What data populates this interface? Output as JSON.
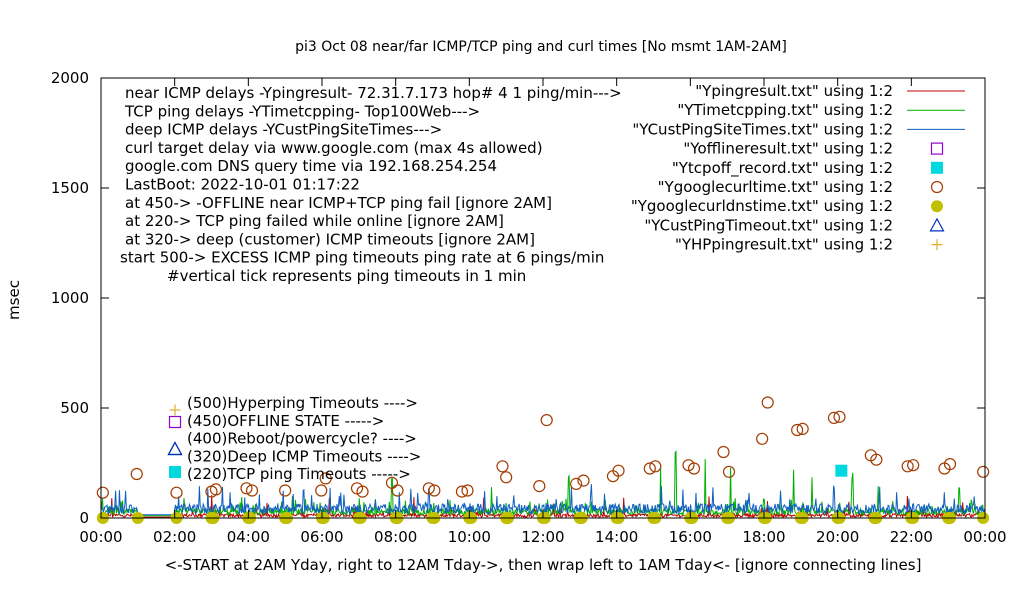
{
  "chart_data": {
    "type": "line",
    "title": "pi3 Oct 08  near/far ICMP/TCP ping and curl times [No msmt 1AM-2AM]",
    "xlabel": "<-START at 2AM Yday, right to 12AM Tday->, then wrap left to 1AM Tday<- [ignore connecting lines]",
    "ylabel": "msec",
    "xlim": [
      0,
      24
    ],
    "ylim": [
      0,
      2000
    ],
    "x_ticks": [
      0,
      2,
      4,
      6,
      8,
      10,
      12,
      14,
      16,
      18,
      20,
      22,
      24
    ],
    "x_tick_labels": [
      "00:00",
      "02:00",
      "04:00",
      "06:00",
      "08:00",
      "10:00",
      "12:00",
      "14:00",
      "16:00",
      "18:00",
      "20:00",
      "22:00",
      "00:00"
    ],
    "y_ticks": [
      0,
      500,
      1000,
      1500,
      2000
    ],
    "y_tick_labels": [
      "0",
      "500",
      "1000",
      "1500",
      "2000"
    ],
    "grid": false,
    "legend_position": "top-right",
    "annotations_top_left": [
      "near ICMP delays -Ypingresult- 72.31.7.173 hop# 4 1 ping/min--->",
      "TCP ping delays -YTimetcpping- Top100Web--->",
      "deep ICMP delays -YCustPingSiteTimes--->",
      "curl target delay via www.google.com (max 4s allowed)",
      "google.com DNS query time via 192.168.254.254",
      "LastBoot: 2022-10-01 01:17:22",
      "at 450-> -OFFLINE near ICMP+TCP ping fail [ignore 2AM]",
      "at 220-> TCP ping failed while online [ignore 2AM]",
      "at 320-> deep (customer) ICMP timeouts [ignore 2AM]",
      "start 500-> EXCESS ICMP ping timeouts ping rate at 6 pings/min",
      "#vertical tick represents ping timeouts in 1 min"
    ],
    "annotations_key": [
      "(500)Hyperping Timeouts ---->",
      "(450)OFFLINE STATE ----->",
      "(400)Reboot/powercycle? ---->",
      "(320)Deep ICMP Timeouts ---->",
      "(220)TCP ping Timeouts ----->"
    ],
    "series": [
      {
        "name": "\"Ypingresult.txt\" using 1:2",
        "style": "line",
        "color": "#c00000",
        "baseline": 12,
        "noise": 10,
        "spikes": [
          [
            0.3,
            90
          ],
          [
            1.2,
            60
          ],
          [
            3.0,
            110
          ],
          [
            4.5,
            85
          ],
          [
            6.2,
            95
          ],
          [
            8.5,
            100
          ],
          [
            10.4,
            90
          ],
          [
            12.3,
            75
          ],
          [
            14.2,
            95
          ],
          [
            16.5,
            110
          ],
          [
            18.1,
            80
          ],
          [
            20.3,
            90
          ],
          [
            21.9,
            105
          ],
          [
            23.4,
            80
          ]
        ]
      },
      {
        "name": "\"YTimetcpping.txt\" using 1:2",
        "style": "line",
        "color": "#00b000",
        "baseline": 28,
        "noise": 18,
        "spikes": [
          [
            5.2,
            120
          ],
          [
            7.9,
            190
          ],
          [
            10.6,
            140
          ],
          [
            12.7,
            200
          ],
          [
            15.2,
            240
          ],
          [
            15.6,
            310
          ],
          [
            16.4,
            290
          ],
          [
            17.1,
            230
          ],
          [
            18.8,
            250
          ],
          [
            19.3,
            200
          ],
          [
            20.4,
            200
          ],
          [
            21.1,
            180
          ],
          [
            23.3,
            140
          ]
        ]
      },
      {
        "name": "\"YCustPingSiteTimes.txt\" using 1:2",
        "style": "line",
        "color": "#1060c0",
        "baseline": 42,
        "noise": 28,
        "spikes": [
          [
            0.4,
            130
          ],
          [
            1.6,
            120
          ],
          [
            3.3,
            140
          ],
          [
            5.5,
            145
          ],
          [
            6.6,
            125
          ],
          [
            8.9,
            135
          ],
          [
            11.2,
            120
          ],
          [
            13.3,
            125
          ],
          [
            15.8,
            150
          ],
          [
            17.6,
            135
          ],
          [
            19.9,
            140
          ],
          [
            21.6,
            125
          ],
          [
            23.7,
            120
          ]
        ]
      },
      {
        "name": "\"Yofflineresult.txt\" using 1:2",
        "style": "square-open",
        "color": "#9400d3",
        "x": [],
        "y": []
      },
      {
        "name": "\"Ytcpoff_record.txt\" using 1:2",
        "style": "square-filled",
        "color": "#00d8e0",
        "x": [
          20.1
        ],
        "y": [
          215
        ]
      },
      {
        "name": "\"Ygooglecurltime.txt\" using 1:2",
        "style": "circle-open",
        "color": "#a33c00",
        "x": [
          0.05,
          0.97,
          2.05,
          3.0,
          3.12,
          3.95,
          4.1,
          5.0,
          5.98,
          6.1,
          6.95,
          7.1,
          7.9,
          8.05,
          8.9,
          9.05,
          9.8,
          9.95,
          10.9,
          11.0,
          11.9,
          12.1,
          12.9,
          13.1,
          13.9,
          14.05,
          14.9,
          15.05,
          15.95,
          16.1,
          16.9,
          17.05,
          17.95,
          18.1,
          18.9,
          19.05,
          19.9,
          20.05,
          20.9,
          21.05,
          21.9,
          22.05,
          22.9,
          23.05,
          23.95
        ],
        "y": [
          115,
          200,
          115,
          120,
          130,
          135,
          125,
          125,
          125,
          180,
          135,
          120,
          160,
          125,
          135,
          125,
          120,
          125,
          235,
          185,
          145,
          445,
          155,
          170,
          190,
          215,
          225,
          235,
          240,
          225,
          300,
          210,
          360,
          525,
          400,
          405,
          455,
          460,
          285,
          265,
          235,
          240,
          225,
          245,
          210
        ]
      },
      {
        "name": "\"Ygooglecurldnstime.txt\" using 1:2",
        "style": "circle-filled",
        "color": "#c0c000",
        "x": [
          0.05,
          1.0,
          2.05,
          3.0,
          3.05,
          4.0,
          4.05,
          5.0,
          5.05,
          6.0,
          6.05,
          7.0,
          7.05,
          8.0,
          8.05,
          9.0,
          9.05,
          10.0,
          10.05,
          11.0,
          11.05,
          12.0,
          12.05,
          13.0,
          13.05,
          14.0,
          14.05,
          15.0,
          15.05,
          16.0,
          16.05,
          17.0,
          17.05,
          18.0,
          18.05,
          19.0,
          19.05,
          20.0,
          20.05,
          21.0,
          21.05,
          22.0,
          22.05,
          23.0,
          23.05,
          23.95
        ],
        "y": [
          0,
          0,
          0,
          0,
          0,
          0,
          0,
          0,
          0,
          0,
          0,
          0,
          0,
          0,
          0,
          0,
          0,
          0,
          0,
          0,
          0,
          0,
          0,
          0,
          0,
          0,
          0,
          0,
          0,
          0,
          0,
          0,
          0,
          0,
          0,
          0,
          0,
          0,
          0,
          0,
          0,
          0,
          0,
          0,
          0,
          0
        ]
      },
      {
        "name": "\"YCustPingTimeout.txt\" using 1:2",
        "style": "triangle-open",
        "color": "#0030c0",
        "x": [],
        "y": []
      },
      {
        "name": "\"YHPpingresult.txt\" using 1:2",
        "style": "plus",
        "color": "#e0b030",
        "x": [],
        "y": []
      }
    ],
    "key_marker_colors": {
      "plus": "#e0b030",
      "square-open": "#9400d3",
      "triangle-open": "#0030c0",
      "square-filled": "#00d8e0"
    }
  }
}
